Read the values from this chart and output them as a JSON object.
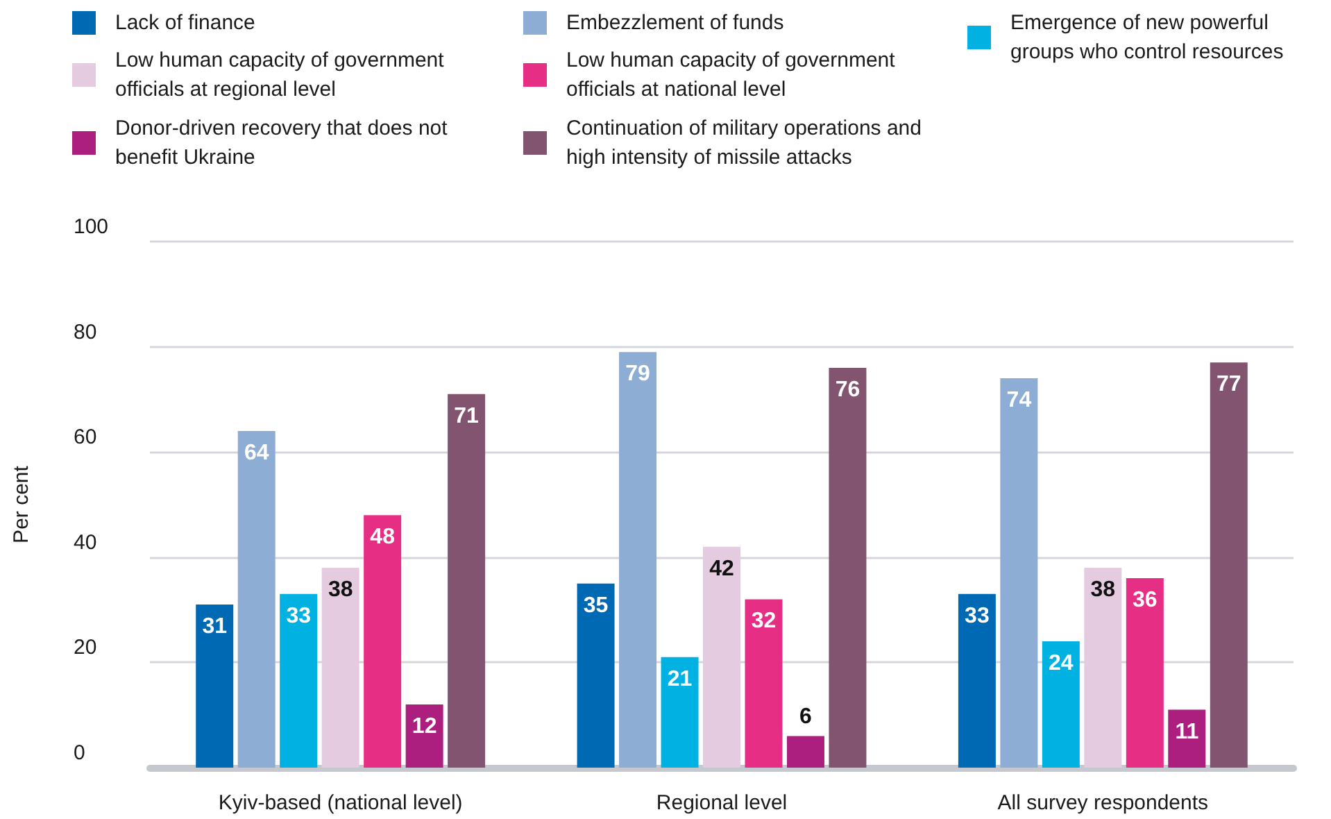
{
  "chart_data": {
    "type": "bar",
    "ylabel": "Per cent",
    "categories": [
      "Kyiv-based (national level)",
      "Regional level",
      "All survey respondents"
    ],
    "series": [
      {
        "name": "Lack of finance",
        "color": "#0069b4",
        "values": [
          31,
          35,
          33
        ]
      },
      {
        "name": "Embezzlement of funds",
        "color": "#8dadd5",
        "values": [
          64,
          79,
          74
        ]
      },
      {
        "name": "Emergence of new powerful groups who control resources",
        "color": "#00b1e1",
        "values": [
          33,
          21,
          24
        ]
      },
      {
        "name": "Low human capacity of government officials at regional level",
        "color": "#e5cbe0",
        "values": [
          38,
          42,
          38
        ]
      },
      {
        "name": "Low human capacity of government officials at national level",
        "color": "#e62e84",
        "values": [
          48,
          32,
          36
        ]
      },
      {
        "name": "Donor-driven recovery that does not benefit Ukraine",
        "color": "#ad1f7f",
        "values": [
          12,
          6,
          11
        ]
      },
      {
        "name": "Continuation of military operations and high intensity of missile attacks",
        "color": "#835470",
        "values": [
          71,
          76,
          77
        ]
      }
    ],
    "ylim": [
      0,
      100
    ],
    "yticks": [
      0,
      20,
      40,
      60,
      80,
      100
    ],
    "grid": "y",
    "legend": "top",
    "data_labels": true
  }
}
